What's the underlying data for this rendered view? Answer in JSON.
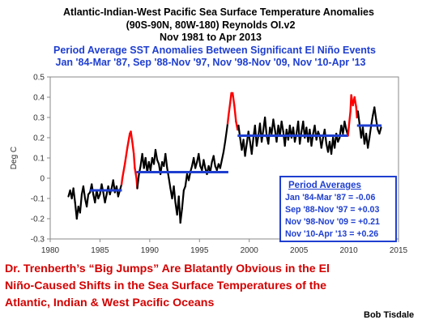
{
  "chart_data": {
    "type": "line",
    "title_lines": [
      "Atlantic-Indian-West Pacific Sea Surface Temperature Anomalies",
      "(90S-90N, 80W-180) Reynolds OI.v2",
      "Nov 1981 to Apr 2013"
    ],
    "subtitle_lines": [
      "Period Average SST Anomalies Between Significant El Niño Events",
      "Jan '84-Mar '87, Sep '88-Nov '97, Nov '98-Nov '09, Nov '10-Apr '13"
    ],
    "ylabel": "Deg C",
    "xlabel": "",
    "xlim": [
      1980,
      2015
    ],
    "ylim": [
      -0.3,
      0.5
    ],
    "x_ticks": [
      "1980",
      "1985",
      "1990",
      "1995",
      "2000",
      "2005",
      "2010",
      "2015"
    ],
    "y_ticks": [
      "-0.3",
      "-0.2",
      "-0.1",
      "0",
      "0.1",
      "0.2",
      "0.3",
      "0.4",
      "0.5"
    ],
    "grid": false,
    "colors": {
      "series": "#000000",
      "el_nino": "#ff0000",
      "period_average": "#1f3fd0",
      "title": "#000000",
      "subtitle": "#1f3fd0"
    },
    "series": [
      {
        "points": [
          [
            1981.83,
            -0.09
          ],
          [
            1982.0,
            -0.06
          ],
          [
            1982.17,
            -0.1
          ],
          [
            1982.33,
            -0.05
          ],
          [
            1982.5,
            -0.12
          ],
          [
            1982.67,
            -0.2
          ],
          [
            1982.83,
            -0.14
          ],
          [
            1983.0,
            -0.17
          ],
          [
            1983.17,
            -0.08
          ],
          [
            1983.33,
            -0.04
          ],
          [
            1983.5,
            -0.1
          ],
          [
            1983.67,
            -0.14
          ],
          [
            1983.83,
            -0.08
          ],
          [
            1984.0,
            -0.07
          ],
          [
            1984.17,
            -0.03
          ],
          [
            1984.33,
            -0.08
          ],
          [
            1984.5,
            -0.12
          ],
          [
            1984.67,
            -0.06
          ],
          [
            1984.83,
            -0.1
          ],
          [
            1985.0,
            -0.08
          ],
          [
            1985.17,
            -0.03
          ],
          [
            1985.33,
            -0.07
          ],
          [
            1985.5,
            -0.12
          ],
          [
            1985.67,
            -0.08
          ],
          [
            1985.83,
            -0.04
          ],
          [
            1986.0,
            -0.08
          ],
          [
            1986.17,
            -0.05
          ],
          [
            1986.33,
            -0.01
          ],
          [
            1986.5,
            -0.07
          ],
          [
            1986.67,
            -0.04
          ],
          [
            1986.83,
            -0.09
          ],
          [
            1987.0,
            -0.06
          ],
          [
            1987.17,
            -0.03
          ],
          [
            1987.25,
            0.0
          ],
          [
            1987.5,
            0.07
          ],
          [
            1987.75,
            0.15
          ],
          [
            1988.0,
            0.22
          ],
          [
            1988.1,
            0.23
          ],
          [
            1988.25,
            0.18
          ],
          [
            1988.4,
            0.12
          ],
          [
            1988.5,
            0.05
          ],
          [
            1988.67,
            0.0
          ],
          [
            1988.75,
            -0.05
          ],
          [
            1988.92,
            0.02
          ],
          [
            1989.08,
            0.06
          ],
          [
            1989.25,
            0.12
          ],
          [
            1989.42,
            0.05
          ],
          [
            1989.58,
            0.1
          ],
          [
            1989.75,
            0.03
          ],
          [
            1989.92,
            0.08
          ],
          [
            1990.08,
            0.04
          ],
          [
            1990.25,
            0.1
          ],
          [
            1990.42,
            0.07
          ],
          [
            1990.58,
            0.14
          ],
          [
            1990.75,
            0.09
          ],
          [
            1990.92,
            0.07
          ],
          [
            1991.08,
            0.02
          ],
          [
            1991.25,
            0.08
          ],
          [
            1991.42,
            0.06
          ],
          [
            1991.58,
            0.12
          ],
          [
            1991.75,
            0.05
          ],
          [
            1991.92,
            0.0
          ],
          [
            1992.08,
            -0.05
          ],
          [
            1992.25,
            -0.1
          ],
          [
            1992.42,
            -0.04
          ],
          [
            1992.58,
            -0.12
          ],
          [
            1992.75,
            -0.18
          ],
          [
            1992.92,
            -0.09
          ],
          [
            1993.08,
            -0.22
          ],
          [
            1993.25,
            -0.15
          ],
          [
            1993.42,
            -0.06
          ],
          [
            1993.58,
            -0.04
          ],
          [
            1993.75,
            0.02
          ],
          [
            1993.92,
            -0.01
          ],
          [
            1994.08,
            0.03
          ],
          [
            1994.25,
            0.06
          ],
          [
            1994.42,
            0.1
          ],
          [
            1994.58,
            0.05
          ],
          [
            1994.75,
            0.08
          ],
          [
            1994.92,
            0.12
          ],
          [
            1995.08,
            0.06
          ],
          [
            1995.25,
            0.04
          ],
          [
            1995.42,
            0.09
          ],
          [
            1995.58,
            0.05
          ],
          [
            1995.75,
            0.02
          ],
          [
            1995.92,
            0.06
          ],
          [
            1996.08,
            0.03
          ],
          [
            1996.25,
            0.08
          ],
          [
            1996.42,
            0.11
          ],
          [
            1996.58,
            0.06
          ],
          [
            1996.75,
            0.04
          ],
          [
            1996.92,
            0.07
          ],
          [
            1997.08,
            0.05
          ],
          [
            1997.25,
            0.09
          ],
          [
            1997.42,
            0.13
          ],
          [
            1997.58,
            0.18
          ],
          [
            1997.75,
            0.24
          ],
          [
            1997.83,
            0.27
          ],
          [
            1997.92,
            0.31
          ],
          [
            1998.08,
            0.37
          ],
          [
            1998.2,
            0.42
          ],
          [
            1998.33,
            0.42
          ],
          [
            1998.5,
            0.36
          ],
          [
            1998.67,
            0.28
          ],
          [
            1998.83,
            0.24
          ],
          [
            1998.92,
            0.26
          ],
          [
            1999.08,
            0.2
          ],
          [
            1999.25,
            0.14
          ],
          [
            1999.42,
            0.19
          ],
          [
            1999.58,
            0.11
          ],
          [
            1999.75,
            0.17
          ],
          [
            1999.92,
            0.23
          ],
          [
            2000.08,
            0.18
          ],
          [
            2000.25,
            0.12
          ],
          [
            2000.42,
            0.2
          ],
          [
            2000.58,
            0.26
          ],
          [
            2000.75,
            0.16
          ],
          [
            2000.92,
            0.21
          ],
          [
            2001.08,
            0.27
          ],
          [
            2001.25,
            0.18
          ],
          [
            2001.42,
            0.24
          ],
          [
            2001.58,
            0.3
          ],
          [
            2001.75,
            0.21
          ],
          [
            2001.92,
            0.17
          ],
          [
            2002.08,
            0.25
          ],
          [
            2002.25,
            0.22
          ],
          [
            2002.42,
            0.29
          ],
          [
            2002.58,
            0.24
          ],
          [
            2002.75,
            0.18
          ],
          [
            2002.92,
            0.26
          ],
          [
            2003.08,
            0.21
          ],
          [
            2003.25,
            0.28
          ],
          [
            2003.42,
            0.23
          ],
          [
            2003.58,
            0.16
          ],
          [
            2003.75,
            0.24
          ],
          [
            2003.92,
            0.19
          ],
          [
            2004.08,
            0.26
          ],
          [
            2004.25,
            0.2
          ],
          [
            2004.42,
            0.25
          ],
          [
            2004.58,
            0.18
          ],
          [
            2004.75,
            0.22
          ],
          [
            2004.92,
            0.28
          ],
          [
            2005.08,
            0.17
          ],
          [
            2005.25,
            0.23
          ],
          [
            2005.42,
            0.28
          ],
          [
            2005.58,
            0.2
          ],
          [
            2005.75,
            0.25
          ],
          [
            2005.92,
            0.18
          ],
          [
            2006.08,
            0.24
          ],
          [
            2006.25,
            0.16
          ],
          [
            2006.42,
            0.22
          ],
          [
            2006.58,
            0.26
          ],
          [
            2006.75,
            0.19
          ],
          [
            2006.92,
            0.23
          ],
          [
            2007.08,
            0.21
          ],
          [
            2007.25,
            0.15
          ],
          [
            2007.42,
            0.2
          ],
          [
            2007.58,
            0.24
          ],
          [
            2007.75,
            0.17
          ],
          [
            2007.92,
            0.13
          ],
          [
            2008.08,
            0.18
          ],
          [
            2008.25,
            0.12
          ],
          [
            2008.42,
            0.2
          ],
          [
            2008.58,
            0.15
          ],
          [
            2008.75,
            0.22
          ],
          [
            2008.92,
            0.18
          ],
          [
            2009.08,
            0.2
          ],
          [
            2009.25,
            0.26
          ],
          [
            2009.42,
            0.22
          ],
          [
            2009.58,
            0.28
          ],
          [
            2009.75,
            0.24
          ],
          [
            2009.92,
            0.21
          ],
          [
            2010.0,
            0.25
          ],
          [
            2010.17,
            0.33
          ],
          [
            2010.25,
            0.41
          ],
          [
            2010.42,
            0.36
          ],
          [
            2010.58,
            0.4
          ],
          [
            2010.75,
            0.35
          ],
          [
            2010.83,
            0.3
          ],
          [
            2010.92,
            0.33
          ],
          [
            2011.08,
            0.27
          ],
          [
            2011.25,
            0.2
          ],
          [
            2011.42,
            0.25
          ],
          [
            2011.58,
            0.17
          ],
          [
            2011.75,
            0.22
          ],
          [
            2011.92,
            0.15
          ],
          [
            2012.08,
            0.2
          ],
          [
            2012.25,
            0.26
          ],
          [
            2012.42,
            0.31
          ],
          [
            2012.58,
            0.35
          ],
          [
            2012.75,
            0.29
          ],
          [
            2012.92,
            0.24
          ],
          [
            2013.08,
            0.22
          ],
          [
            2013.25,
            0.25
          ]
        ],
        "highlight_ranges_el_nino": [
          [
            1987.17,
            1988.75
          ],
          [
            1997.83,
            1998.92
          ],
          [
            2009.92,
            2010.92
          ]
        ]
      }
    ],
    "period_averages": [
      {
        "x_start": 1984.0,
        "x_end": 1987.2,
        "value": -0.06
      },
      {
        "x_start": 1988.67,
        "x_end": 1997.9,
        "value": 0.03
      },
      {
        "x_start": 1998.83,
        "x_end": 2009.9,
        "value": 0.21
      },
      {
        "x_start": 2010.83,
        "x_end": 2013.3,
        "value": 0.26
      }
    ]
  },
  "legend": {
    "title": "Period Averages",
    "rows": [
      "Jan '84-Mar '87 = -0.06",
      "Sep '88-Nov '97 = +0.03",
      "Nov '98-Nov '09 = +0.21",
      "Nov '10-Apr '13 = +0.26"
    ]
  },
  "caption": "Dr. Trenberth’s “Big Jumps” Are Blatantly Obvious in the El Niño-Caused Shifts in the Sea Surface Temperatures of the Atlantic, Indian & West Pacific Oceans",
  "author": "Bob Tisdale"
}
